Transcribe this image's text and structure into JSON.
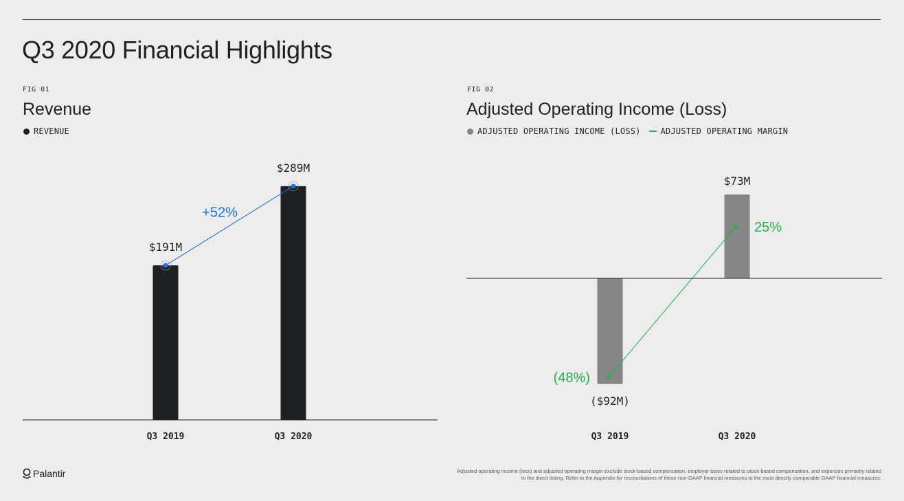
{
  "page": {
    "title": "Q3 2020 Financial Highlights"
  },
  "colors": {
    "revenue_bar": "#1e2124",
    "growth_line": "#1a73e8",
    "income_bar": "#858787",
    "margin_line": "#22b24c",
    "axis": "#1e2124"
  },
  "chart_data": [
    {
      "type": "bar",
      "fig_label": "FIG 01",
      "title": "Revenue",
      "legend": [
        {
          "label": "REVENUE",
          "marker": "dot"
        }
      ],
      "categories": [
        "Q3 2019",
        "Q3 2020"
      ],
      "series": [
        {
          "name": "REVENUE",
          "values": [
            191,
            289
          ],
          "unit": "$M"
        }
      ],
      "data_labels": [
        "$191M",
        "$289M"
      ],
      "annotations": [
        {
          "text": "+52%",
          "type": "growth-line"
        }
      ],
      "ylim": [
        0,
        305
      ]
    },
    {
      "type": "bar",
      "fig_label": "FIG 02",
      "title": "Adjusted Operating Income (Loss)",
      "legend": [
        {
          "label": "ADJUSTED OPERATING INCOME (LOSS)",
          "marker": "dot"
        },
        {
          "label": "ADJUSTED OPERATING MARGIN",
          "marker": "line"
        }
      ],
      "categories": [
        "Q3 2019",
        "Q3 2020"
      ],
      "series": [
        {
          "name": "ADJUSTED OPERATING INCOME (LOSS)",
          "values": [
            -92,
            73
          ],
          "unit": "$M"
        },
        {
          "name": "ADJUSTED OPERATING MARGIN",
          "values": [
            -48,
            25
          ],
          "unit": "%"
        }
      ],
      "data_labels": [
        "($92M)",
        "$73M"
      ],
      "margin_labels": [
        "(48%)",
        "25%"
      ],
      "ylim": [
        -130,
        130
      ]
    }
  ],
  "footer": {
    "logo_text": "Palantir",
    "footnote": "Adjusted operating income (loss) and adjusted operating margin exclude stock-based compensation, employer taxes related to stock-based compensation, and expenses primarily related to the direct listing. Refer to the Appendix for reconciliations of these non-GAAP financial measures to the most directly comparable GAAP financial measures."
  }
}
